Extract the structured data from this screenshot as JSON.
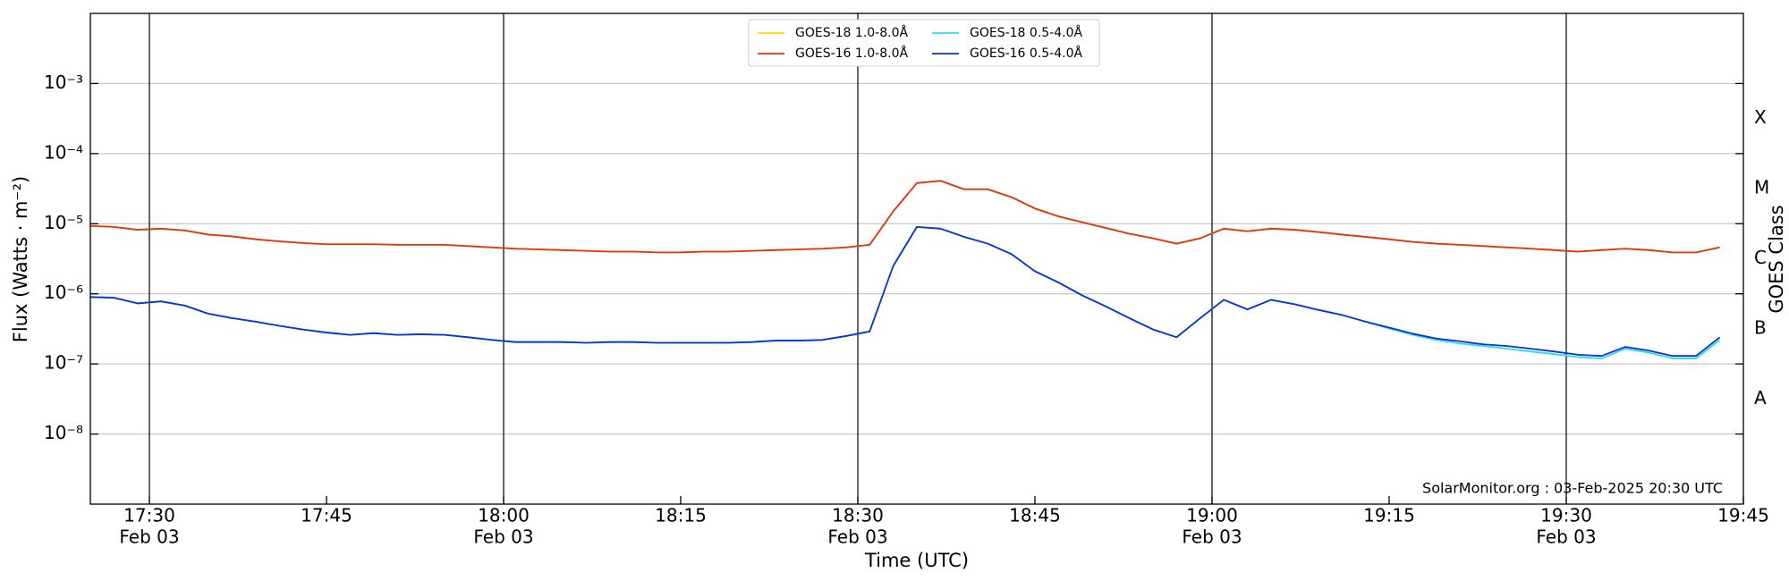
{
  "chart_data": {
    "type": "line",
    "xlabel": "Time (UTC)",
    "ylabel": "Flux (Watts · m⁻²)",
    "y2label": "GOES Class",
    "annotation": "SolarMonitor.org : 03-Feb-2025 20:30 UTC",
    "log_y": true,
    "grid": true,
    "legend": "upper center",
    "xlim": [
      "17:25",
      "19:45"
    ],
    "xticks": [
      {
        "value": "17:30",
        "label": "17:30",
        "date": "Feb 03"
      },
      {
        "value": "17:45",
        "label": "17:45"
      },
      {
        "value": "18:00",
        "label": "18:00",
        "date": "Feb 03"
      },
      {
        "value": "18:15",
        "label": "18:15"
      },
      {
        "value": "18:30",
        "label": "18:30",
        "date": "Feb 03"
      },
      {
        "value": "18:45",
        "label": "18:45"
      },
      {
        "value": "19:00",
        "label": "19:00",
        "date": "Feb 03"
      },
      {
        "value": "19:15",
        "label": "19:15"
      },
      {
        "value": "19:30",
        "label": "19:30",
        "date": "Feb 03"
      },
      {
        "value": "19:45",
        "label": "19:45"
      }
    ],
    "vlines": [
      "17:30",
      "18:00",
      "18:30",
      "19:00",
      "19:30"
    ],
    "ylim": [
      1e-09,
      0.01
    ],
    "yticks": [
      {
        "value": 0.001,
        "label": "10⁻³"
      },
      {
        "value": 0.0001,
        "label": "10⁻⁴"
      },
      {
        "value": 1e-05,
        "label": "10⁻⁵"
      },
      {
        "value": 1e-06,
        "label": "10⁻⁶"
      },
      {
        "value": 1e-07,
        "label": "10⁻⁷"
      },
      {
        "value": 1e-08,
        "label": "10⁻⁸"
      }
    ],
    "y2lim": [
      1e-09,
      0.01
    ],
    "y2ticks": [
      {
        "value": 0.000316,
        "label": "X"
      },
      {
        "value": 3.16e-05,
        "label": "M"
      },
      {
        "value": 3.16e-06,
        "label": "C"
      },
      {
        "value": 3.16e-07,
        "label": "B"
      },
      {
        "value": 3.16e-08,
        "label": "A"
      }
    ],
    "x": [
      "17:25",
      "17:27",
      "17:29",
      "17:31",
      "17:33",
      "17:35",
      "17:37",
      "17:39",
      "17:41",
      "17:43",
      "17:45",
      "17:47",
      "17:49",
      "17:51",
      "17:53",
      "17:55",
      "17:57",
      "17:59",
      "18:01",
      "18:03",
      "18:05",
      "18:07",
      "18:09",
      "18:11",
      "18:13",
      "18:15",
      "18:17",
      "18:19",
      "18:21",
      "18:23",
      "18:25",
      "18:27",
      "18:29",
      "18:31",
      "18:33",
      "18:35",
      "18:37",
      "18:39",
      "18:41",
      "18:43",
      "18:45",
      "18:47",
      "18:49",
      "18:51",
      "18:53",
      "18:55",
      "18:57",
      "18:59",
      "19:01",
      "19:03",
      "19:05",
      "19:07",
      "19:09",
      "19:11",
      "19:13",
      "19:15",
      "19:17",
      "19:19",
      "19:21",
      "19:23",
      "19:25",
      "19:27",
      "19:29",
      "19:31",
      "19:33",
      "19:35",
      "19:37",
      "19:39",
      "19:41",
      "19:43"
    ],
    "series": [
      {
        "name": "GOES-18 1.0-8.0Å",
        "color": "#ffd700",
        "values": [
          9.3e-06,
          9e-06,
          8.2e-06,
          8.5e-06,
          8e-06,
          7e-06,
          6.6e-06,
          6e-06,
          5.6e-06,
          5.3e-06,
          5.1e-06,
          5.1e-06,
          5.1e-06,
          5e-06,
          5e-06,
          5e-06,
          4.8e-06,
          4.6e-06,
          4.4e-06,
          4.3e-06,
          4.2e-06,
          4.1e-06,
          4e-06,
          4e-06,
          3.9e-06,
          3.9e-06,
          4e-06,
          4e-06,
          4.1e-06,
          4.2e-06,
          4.3e-06,
          4.4e-06,
          4.6e-06,
          5e-06,
          1.5e-05,
          3.8e-05,
          4.1e-05,
          3.1e-05,
          3.1e-05,
          2.4e-05,
          1.65e-05,
          1.27e-05,
          1.05e-05,
          8.7e-06,
          7.2e-06,
          6.2e-06,
          5.2e-06,
          6.2e-06,
          8.5e-06,
          7.8e-06,
          8.5e-06,
          8.2e-06,
          7.6e-06,
          7e-06,
          6.5e-06,
          6e-06,
          5.5e-06,
          5.2e-06,
          5e-06,
          4.8e-06,
          4.6e-06,
          4.4e-06,
          4.2e-06,
          4e-06,
          4.2e-06,
          4.4e-06,
          4.2e-06,
          3.9e-06,
          3.9e-06,
          4.6e-06
        ]
      },
      {
        "name": "GOES-16 1.0-8.0Å",
        "color": "#e8300f",
        "values": [
          9.3e-06,
          9e-06,
          8.2e-06,
          8.5e-06,
          8e-06,
          7e-06,
          6.6e-06,
          6e-06,
          5.6e-06,
          5.3e-06,
          5.1e-06,
          5.1e-06,
          5.1e-06,
          5e-06,
          5e-06,
          5e-06,
          4.8e-06,
          4.6e-06,
          4.4e-06,
          4.3e-06,
          4.2e-06,
          4.1e-06,
          4e-06,
          4e-06,
          3.9e-06,
          3.9e-06,
          4e-06,
          4e-06,
          4.1e-06,
          4.2e-06,
          4.3e-06,
          4.4e-06,
          4.6e-06,
          5e-06,
          1.5e-05,
          3.8e-05,
          4.1e-05,
          3.1e-05,
          3.1e-05,
          2.4e-05,
          1.65e-05,
          1.27e-05,
          1.05e-05,
          8.7e-06,
          7.2e-06,
          6.2e-06,
          5.2e-06,
          6.2e-06,
          8.5e-06,
          7.8e-06,
          8.5e-06,
          8.2e-06,
          7.6e-06,
          7e-06,
          6.5e-06,
          6e-06,
          5.5e-06,
          5.2e-06,
          5e-06,
          4.8e-06,
          4.6e-06,
          4.4e-06,
          4.2e-06,
          4e-06,
          4.2e-06,
          4.4e-06,
          4.2e-06,
          3.9e-06,
          3.9e-06,
          4.6e-06
        ]
      },
      {
        "name": "GOES-18 0.5-4.0Å",
        "color": "#22e0f0",
        "values": [
          9e-07,
          8.8e-07,
          7.3e-07,
          7.8e-07,
          6.8e-07,
          5.2e-07,
          4.5e-07,
          4e-07,
          3.5e-07,
          3.1e-07,
          2.8e-07,
          2.6e-07,
          2.75e-07,
          2.6e-07,
          2.65e-07,
          2.6e-07,
          2.4e-07,
          2.2e-07,
          2.05e-07,
          2.05e-07,
          2.05e-07,
          2e-07,
          2.05e-07,
          2.05e-07,
          2e-07,
          2e-07,
          2e-07,
          2e-07,
          2.05e-07,
          2.15e-07,
          2.15e-07,
          2.2e-07,
          2.5e-07,
          2.9e-07,
          2.5e-06,
          9e-06,
          8.5e-06,
          6.5e-06,
          5.2e-06,
          3.7e-06,
          2.1e-06,
          1.45e-06,
          9.5e-07,
          6.6e-07,
          4.5e-07,
          3.1e-07,
          2.4e-07,
          4.5e-07,
          8.2e-07,
          6e-07,
          8.2e-07,
          7.1e-07,
          5.9e-07,
          5e-07,
          4e-07,
          3.2e-07,
          2.6e-07,
          2.2e-07,
          1.95e-07,
          1.8e-07,
          1.65e-07,
          1.5e-07,
          1.38e-07,
          1.25e-07,
          1.2e-07,
          1.65e-07,
          1.45e-07,
          1.2e-07,
          1.2e-07,
          2.2e-07
        ]
      },
      {
        "name": "GOES-16 0.5-4.0Å",
        "color": "#0a2fe0",
        "values": [
          9e-07,
          8.8e-07,
          7.3e-07,
          7.8e-07,
          6.8e-07,
          5.2e-07,
          4.5e-07,
          4e-07,
          3.5e-07,
          3.1e-07,
          2.8e-07,
          2.6e-07,
          2.75e-07,
          2.6e-07,
          2.65e-07,
          2.6e-07,
          2.4e-07,
          2.2e-07,
          2.05e-07,
          2.05e-07,
          2.05e-07,
          2e-07,
          2.05e-07,
          2.05e-07,
          2e-07,
          2e-07,
          2e-07,
          2e-07,
          2.05e-07,
          2.15e-07,
          2.15e-07,
          2.2e-07,
          2.5e-07,
          2.9e-07,
          2.5e-06,
          9e-06,
          8.5e-06,
          6.5e-06,
          5.2e-06,
          3.7e-06,
          2.1e-06,
          1.45e-06,
          9.5e-07,
          6.6e-07,
          4.5e-07,
          3.1e-07,
          2.4e-07,
          4.5e-07,
          8.2e-07,
          6e-07,
          8.2e-07,
          7.1e-07,
          5.9e-07,
          5e-07,
          4e-07,
          3.3e-07,
          2.7e-07,
          2.3e-07,
          2.1e-07,
          1.9e-07,
          1.8e-07,
          1.65e-07,
          1.5e-07,
          1.35e-07,
          1.3e-07,
          1.75e-07,
          1.55e-07,
          1.3e-07,
          1.3e-07,
          2.4e-07
        ]
      }
    ]
  }
}
